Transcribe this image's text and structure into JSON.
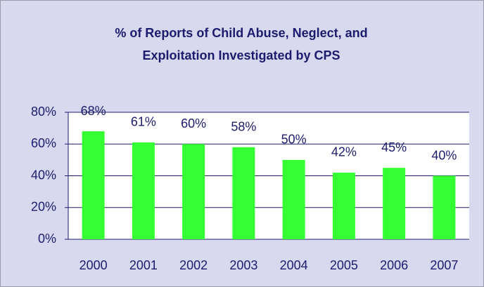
{
  "chart_data": {
    "type": "bar",
    "title": [
      "% of Reports of Child Abuse, Neglect, and",
      "Exploitation Investigated by CPS"
    ],
    "categories": [
      "2000",
      "2001",
      "2002",
      "2003",
      "2004",
      "2005",
      "2006",
      "2007"
    ],
    "values": [
      68,
      61,
      60,
      58,
      50,
      42,
      45,
      40
    ],
    "value_labels": [
      "68%",
      "61%",
      "60%",
      "58%",
      "50%",
      "42%",
      "45%",
      "40%"
    ],
    "color": "#33ff33",
    "ylim": [
      0,
      80
    ],
    "yticks": [
      {
        "value": 0,
        "label": "0%"
      },
      {
        "value": 20,
        "label": "20%"
      },
      {
        "value": 40,
        "label": "40%"
      },
      {
        "value": 60,
        "label": "60%"
      },
      {
        "value": 80,
        "label": "80%"
      }
    ],
    "grid": true
  }
}
